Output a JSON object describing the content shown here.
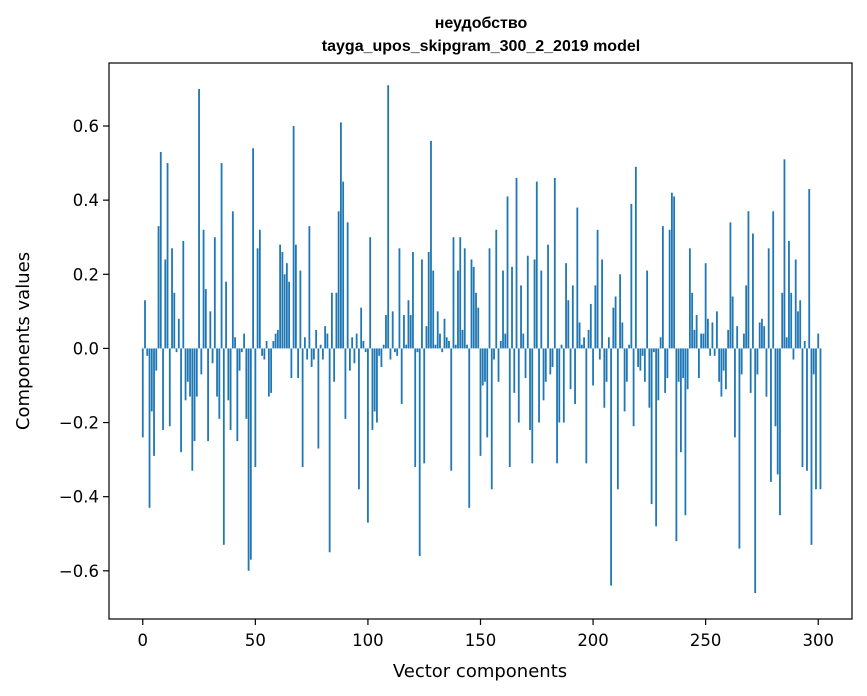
{
  "chart_data": {
    "type": "bar",
    "title_line1": "неудобство",
    "title_line2": "tayga_upos_skipgram_300_2_2019 model",
    "xlabel": "Vector components",
    "ylabel": "Components values",
    "xlim": [
      -15,
      315
    ],
    "ylim": [
      -0.73,
      0.77
    ],
    "x_ticks": [
      0,
      50,
      100,
      150,
      200,
      250,
      300
    ],
    "x_tick_labels": [
      "0",
      "50",
      "100",
      "150",
      "200",
      "250",
      "300"
    ],
    "y_ticks": [
      -0.6,
      -0.4,
      -0.2,
      0.0,
      0.2,
      0.4,
      0.6
    ],
    "y_tick_labels": [
      "−0.6",
      "−0.4",
      "−0.2",
      "0.0",
      "0.2",
      "0.4",
      "0.6"
    ],
    "bar_color": "#1f77b4",
    "values": [
      -0.24,
      0.13,
      -0.02,
      -0.43,
      -0.17,
      -0.29,
      -0.06,
      0.33,
      0.53,
      -0.22,
      0.24,
      0.5,
      -0.21,
      0.27,
      0.15,
      -0.01,
      0.08,
      -0.28,
      0.29,
      -0.14,
      -0.09,
      -0.13,
      -0.33,
      -0.25,
      -0.13,
      0.7,
      -0.07,
      0.32,
      0.16,
      -0.25,
      0.1,
      -0.04,
      0.3,
      -0.13,
      -0.19,
      0.5,
      -0.53,
      0.18,
      -0.14,
      -0.22,
      0.37,
      0.03,
      -0.25,
      -0.06,
      -0.01,
      0.04,
      -0.19,
      -0.6,
      -0.57,
      0.54,
      -0.32,
      0.27,
      0.32,
      -0.02,
      -0.03,
      0.02,
      -0.13,
      -0.12,
      0.02,
      0.04,
      0.05,
      0.28,
      0.26,
      0.2,
      0.23,
      0.18,
      -0.08,
      0.6,
      0.28,
      -0.08,
      0.21,
      -0.32,
      0.03,
      -0.03,
      0.33,
      -0.05,
      -0.03,
      0.05,
      -0.27,
      0.01,
      -0.03,
      0.06,
      0.04,
      -0.55,
      0.15,
      -0.09,
      0.15,
      0.37,
      0.61,
      0.45,
      -0.19,
      0.34,
      -0.06,
      0.03,
      -0.04,
      0.04,
      -0.38,
      0.11,
      0.02,
      -0.01,
      -0.47,
      0.3,
      -0.22,
      -0.17,
      -0.2,
      -0.02,
      -0.05,
      0.01,
      0.09,
      0.71,
      -0.03,
      0.1,
      -0.01,
      -0.02,
      0.27,
      -0.15,
      0.09,
      0.01,
      0.13,
      0.09,
      0.26,
      -0.32,
      -0.01,
      -0.56,
      0.24,
      -0.31,
      0.06,
      0.26,
      0.56,
      0.21,
      0.01,
      0.1,
      0.04,
      -0.01,
      0.08,
      0.03,
      0.02,
      -0.33,
      0.3,
      0.01,
      0.21,
      0.3,
      0.05,
      0.27,
      0.01,
      -0.43,
      0.24,
      0.22,
      0.15,
      0.11,
      -0.29,
      -0.1,
      -0.09,
      -0.24,
      0.27,
      -0.38,
      -0.03,
      0.32,
      -0.09,
      0.02,
      0.21,
      0.04,
      0.41,
      -0.32,
      0.22,
      -0.12,
      0.46,
      -0.2,
      0.17,
      0.04,
      -0.08,
      0.25,
      -0.22,
      -0.31,
      0.24,
      0.45,
      -0.2,
      0.21,
      -0.14,
      -0.09,
      0.28,
      -0.07,
      -0.05,
      0.46,
      -0.31,
      -0.2,
      0.01,
      -0.2,
      0.23,
      0.13,
      -0.11,
      0.17,
      -0.15,
      0.38,
      0.07,
      0.01,
      0.03,
      -0.31,
      0.05,
      0.12,
      -0.1,
      0.17,
      0.32,
      -0.03,
      0.24,
      -0.16,
      -0.09,
      0.03,
      -0.64,
      0.11,
      0.14,
      -0.38,
      0.2,
      0.07,
      -0.17,
      -0.09,
      0.01,
      0.39,
      -0.21,
      0.49,
      -0.05,
      -0.06,
      -0.02,
      -0.09,
      0.21,
      -0.16,
      -0.42,
      -0.01,
      -0.48,
      -0.14,
      0.03,
      0.33,
      -0.12,
      -0.08,
      0.32,
      0.42,
      0.41,
      -0.52,
      -0.09,
      -0.28,
      -0.08,
      -0.45,
      -0.11,
      0.27,
      0.15,
      0.05,
      0.09,
      -0.08,
      0.04,
      0.04,
      0.23,
      0.08,
      -0.02,
      0.07,
      -0.02,
      0.1,
      -0.09,
      -0.13,
      -0.06,
      -0.11,
      0.05,
      0.34,
      0.14,
      -0.24,
      0.06,
      -0.54,
      -0.07,
      0.04,
      0.17,
      0.37,
      -0.12,
      0.31,
      -0.66,
      -0.07,
      0.07,
      0.08,
      0.06,
      -0.13,
      0.27,
      -0.36,
      0.37,
      -0.21,
      -0.34,
      -0.45,
      0.15,
      0.51,
      0.03,
      0.29,
      0.15,
      -0.03,
      0.24,
      0.1,
      0.13,
      -0.32,
      0.02,
      -0.33,
      0.43,
      -0.53,
      -0.07,
      -0.38,
      0.04,
      -0.38
    ]
  }
}
